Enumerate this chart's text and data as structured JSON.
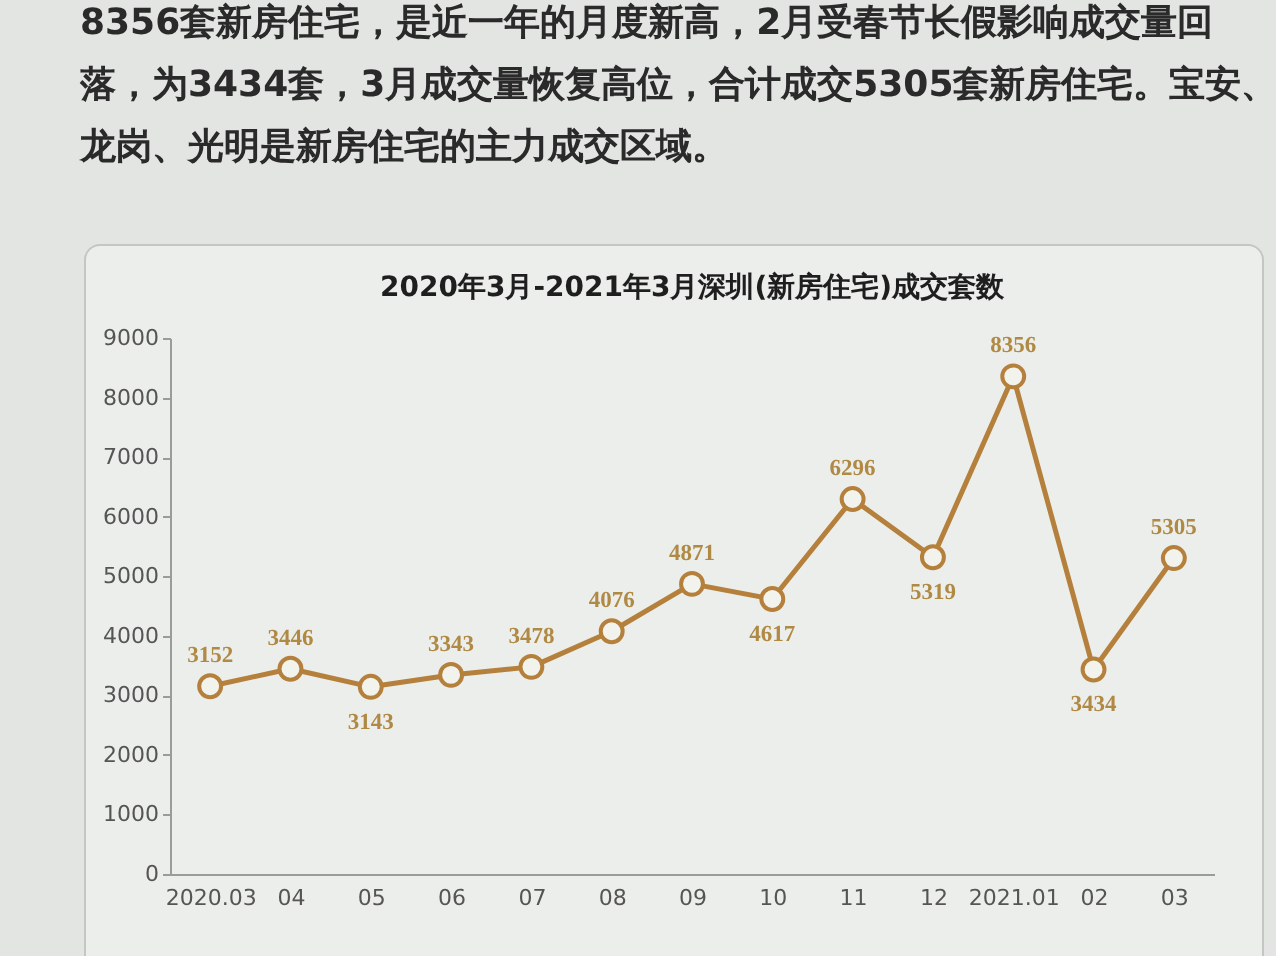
{
  "chart_data": {
    "type": "line",
    "title": "2020年3月-2021年3月深圳(新房住宅)成交套数",
    "annotations": [
      "8356套新房住宅，是近一年的月度新高，2月受春节长假影响成交量回",
      "落，为3434套，3月成交量恢复高位，合计成交5305套新房住宅。宝安、",
      "龙岗、光明是新房住宅的主力成交区域。"
    ],
    "categories": [
      "2020.03",
      "04",
      "05",
      "06",
      "07",
      "08",
      "09",
      "10",
      "11",
      "12",
      "2021.01",
      "02",
      "03"
    ],
    "series": [
      {
        "color": "#b5803c",
        "values": [
          3152,
          3446,
          3143,
          3343,
          3478,
          4076,
          4871,
          4617,
          6296,
          5319,
          8356,
          3434,
          5305
        ]
      }
    ],
    "ylim": [
      0,
      9000
    ],
    "yticks": [
      0,
      1000,
      2000,
      3000,
      4000,
      5000,
      6000,
      7000,
      8000,
      9000
    ],
    "marker": "circle",
    "line_style": "solid",
    "data_labels": true
  }
}
